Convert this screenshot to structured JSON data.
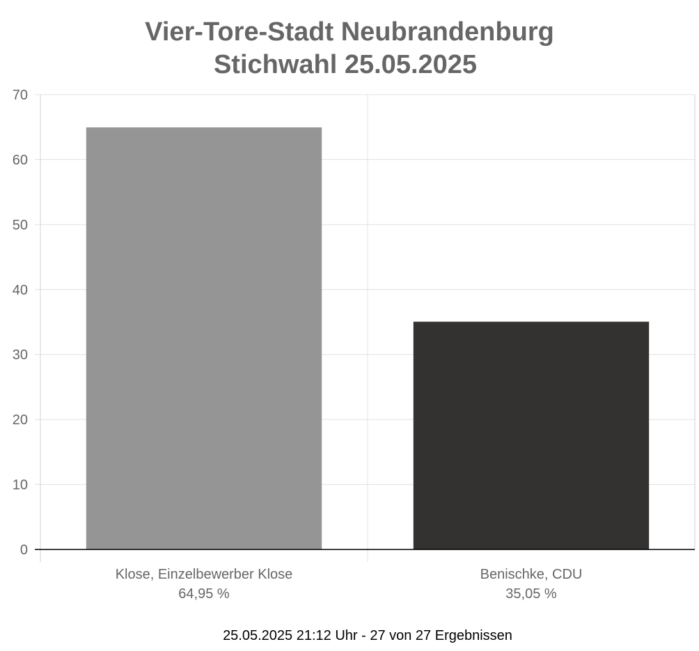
{
  "chart_data": {
    "type": "bar",
    "title_lines": [
      "Vier-Tore-Stadt Neubrandenburg",
      "Stichwahl 25.05.2025"
    ],
    "categories": [
      "Klose, Einzelbewerber Klose",
      "Benischke, CDU"
    ],
    "value_labels": [
      "64,95 %",
      "35,05 %"
    ],
    "values": [
      64.95,
      35.05
    ],
    "colors": [
      "#959595",
      "#333230"
    ],
    "ylim": [
      0,
      70
    ],
    "yticks": [
      0,
      10,
      20,
      30,
      40,
      50,
      60,
      70
    ],
    "grid": true,
    "legend": "none",
    "footer": "25.05.2025 21:12 Uhr - 27 von 27 Ergebnissen"
  }
}
